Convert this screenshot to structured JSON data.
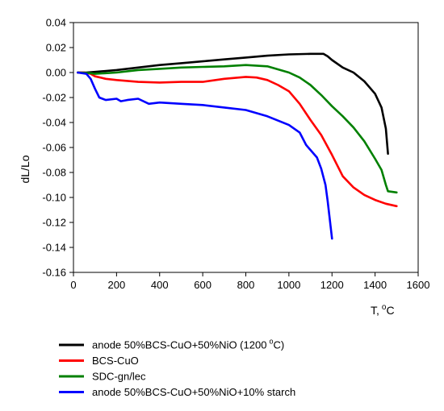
{
  "chart_data": {
    "type": "line",
    "title": "",
    "xlabel": "T,",
    "xlabel_unit_sup": "o",
    "xlabel_unit": "C",
    "ylabel": "dL/Lo",
    "xlim": [
      0,
      1600
    ],
    "ylim": [
      -0.16,
      0.04
    ],
    "x_ticks": [
      "0",
      "200",
      "400",
      "600",
      "800",
      "1000",
      "1200",
      "1400",
      "1600"
    ],
    "y_ticks": [
      "0.04",
      "0.02",
      "0.00",
      "-0.02",
      "-0.04",
      "-0.06",
      "-0.08",
      "-0.10",
      "-0.12",
      "-0.14",
      "-0.16"
    ],
    "grid": false,
    "legend_position": "below",
    "series": [
      {
        "name": "anode 50%BCS-CuO+50%NiO (1200 °C)",
        "legend_text": "anode 50%BCS-CuO+50%NiO (1200",
        "legend_sup": "o",
        "legend_tail": "C)",
        "color": "#000000",
        "points": [
          [
            20,
            0.0
          ],
          [
            60,
            0.0
          ],
          [
            100,
            0.0005
          ],
          [
            200,
            0.002
          ],
          [
            300,
            0.004
          ],
          [
            400,
            0.006
          ],
          [
            500,
            0.0075
          ],
          [
            600,
            0.009
          ],
          [
            700,
            0.0105
          ],
          [
            800,
            0.012
          ],
          [
            900,
            0.0135
          ],
          [
            1000,
            0.0145
          ],
          [
            1100,
            0.015
          ],
          [
            1160,
            0.015
          ],
          [
            1180,
            0.013
          ],
          [
            1200,
            0.01
          ],
          [
            1250,
            0.004
          ],
          [
            1300,
            0.0
          ],
          [
            1350,
            -0.007
          ],
          [
            1400,
            -0.017
          ],
          [
            1430,
            -0.028
          ],
          [
            1450,
            -0.045
          ],
          [
            1460,
            -0.065
          ]
        ]
      },
      {
        "name": "BCS-CuO",
        "color": "#ff0000",
        "points": [
          [
            20,
            0.0
          ],
          [
            50,
            0.0
          ],
          [
            80,
            -0.001
          ],
          [
            100,
            -0.003
          ],
          [
            150,
            -0.005
          ],
          [
            200,
            -0.006
          ],
          [
            300,
            -0.0075
          ],
          [
            400,
            -0.008
          ],
          [
            500,
            -0.0075
          ],
          [
            600,
            -0.0075
          ],
          [
            700,
            -0.005
          ],
          [
            800,
            -0.0035
          ],
          [
            850,
            -0.004
          ],
          [
            900,
            -0.006
          ],
          [
            950,
            -0.01
          ],
          [
            1000,
            -0.015
          ],
          [
            1050,
            -0.025
          ],
          [
            1100,
            -0.038
          ],
          [
            1150,
            -0.05
          ],
          [
            1200,
            -0.066
          ],
          [
            1250,
            -0.083
          ],
          [
            1300,
            -0.092
          ],
          [
            1350,
            -0.098
          ],
          [
            1400,
            -0.102
          ],
          [
            1450,
            -0.105
          ],
          [
            1500,
            -0.107
          ]
        ]
      },
      {
        "name": "SDC-gn/lec",
        "color": "#008000",
        "points": [
          [
            20,
            0.0
          ],
          [
            80,
            -0.0005
          ],
          [
            100,
            -0.001
          ],
          [
            200,
            0.0
          ],
          [
            300,
            0.002
          ],
          [
            400,
            0.003
          ],
          [
            500,
            0.004
          ],
          [
            600,
            0.0045
          ],
          [
            700,
            0.005
          ],
          [
            800,
            0.006
          ],
          [
            900,
            0.005
          ],
          [
            1000,
            0.0
          ],
          [
            1050,
            -0.004
          ],
          [
            1100,
            -0.01
          ],
          [
            1150,
            -0.018
          ],
          [
            1200,
            -0.027
          ],
          [
            1250,
            -0.035
          ],
          [
            1300,
            -0.044
          ],
          [
            1350,
            -0.055
          ],
          [
            1400,
            -0.069
          ],
          [
            1430,
            -0.078
          ],
          [
            1450,
            -0.09
          ],
          [
            1460,
            -0.095
          ],
          [
            1500,
            -0.096
          ]
        ]
      },
      {
        "name": "anode 50%BCS-CuO+50%NiO+10% starch",
        "color": "#0000ff",
        "points": [
          [
            20,
            0.0
          ],
          [
            60,
            -0.001
          ],
          [
            80,
            -0.005
          ],
          [
            100,
            -0.013
          ],
          [
            120,
            -0.02
          ],
          [
            150,
            -0.022
          ],
          [
            200,
            -0.021
          ],
          [
            220,
            -0.023
          ],
          [
            250,
            -0.022
          ],
          [
            300,
            -0.021
          ],
          [
            350,
            -0.025
          ],
          [
            400,
            -0.024
          ],
          [
            500,
            -0.025
          ],
          [
            600,
            -0.026
          ],
          [
            700,
            -0.028
          ],
          [
            800,
            -0.03
          ],
          [
            900,
            -0.035
          ],
          [
            1000,
            -0.042
          ],
          [
            1050,
            -0.048
          ],
          [
            1080,
            -0.058
          ],
          [
            1100,
            -0.062
          ],
          [
            1130,
            -0.068
          ],
          [
            1150,
            -0.077
          ],
          [
            1170,
            -0.09
          ],
          [
            1180,
            -0.103
          ],
          [
            1190,
            -0.118
          ],
          [
            1200,
            -0.133
          ]
        ]
      }
    ]
  }
}
